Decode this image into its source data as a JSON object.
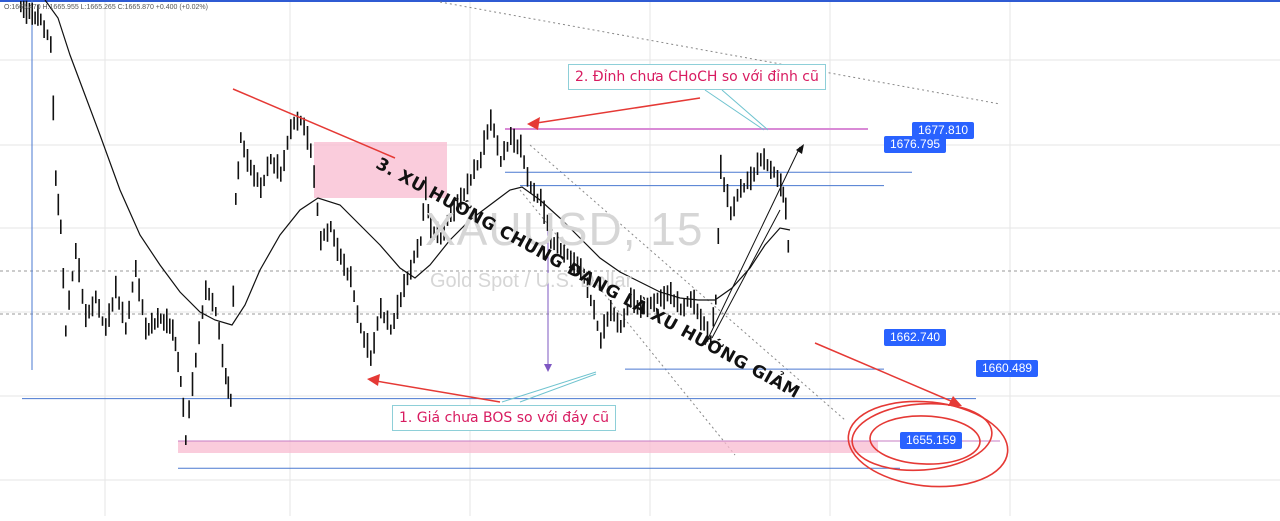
{
  "ohlc_readout": "O:1665.470 H:1665.955 L:1665.265 C:1665.870 +0.400 (+0.02%)",
  "watermark": {
    "symbol": "XAUUSD, 15",
    "description": "Gold Spot / U.S. Dollar"
  },
  "annotations": {
    "bos_note": "1. Giá chưa BOS so với đáy cũ",
    "choch_note": "2. Đỉnh chưa CHoCH so với đỉnh cũ",
    "trend_note": "3. XU HƯỚNG CHUNG ĐANG LÀ XU HƯỚNG GIẢM"
  },
  "colors": {
    "candle": "#111111",
    "moving_average": "#111111",
    "level_line": "#4a78d0",
    "price_tag": "#2962ff",
    "arrow": "#e53935",
    "zone": "#f8bbd0",
    "note_text": "#d81b60",
    "note_border": "#8ecfd8",
    "circle": "#e53935"
  },
  "chart_data": {
    "type": "candlestick",
    "symbol": "XAUUSD",
    "timeframe": "15",
    "ylim": [
      1651.5,
      1691.0
    ],
    "price_levels": [
      {
        "name": "level-1677-810",
        "value": 1677.81
      },
      {
        "name": "level-1676-795",
        "value": 1676.795
      },
      {
        "name": "level-1662-740",
        "value": 1662.74
      },
      {
        "name": "level-1660-489",
        "value": 1660.489
      },
      {
        "name": "level-1655-159",
        "value": 1655.159
      }
    ],
    "price_labels": [
      "1677.810",
      "1676.795",
      "1662.740",
      "1660.489",
      "1655.159"
    ]
  }
}
